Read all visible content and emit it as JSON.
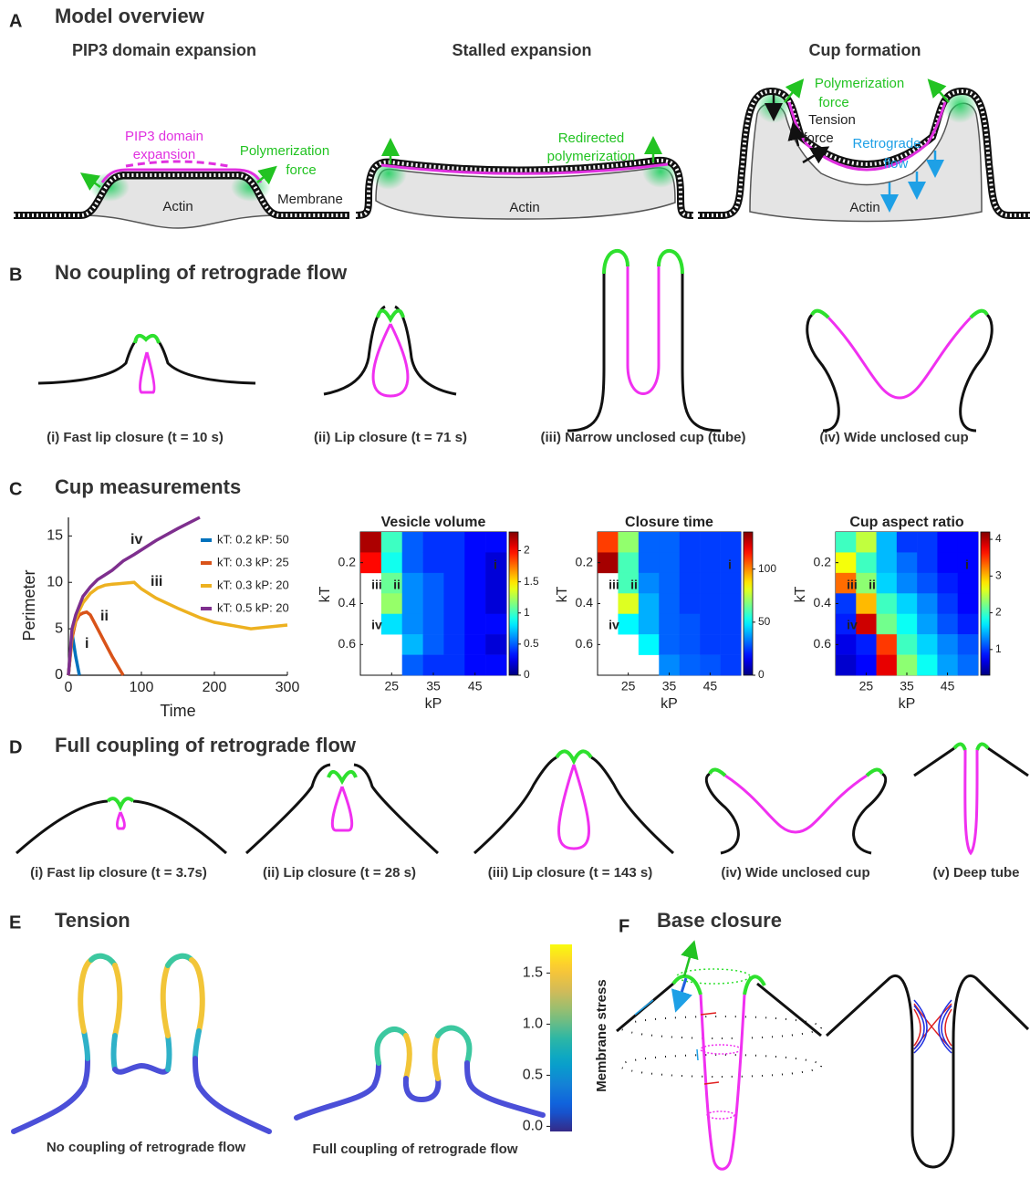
{
  "figure": {
    "A": {
      "letter": "A",
      "title": "Model overview",
      "columns": [
        "PIP3 domain expansion",
        "Stalled expansion",
        "Cup formation"
      ],
      "notes": [
        "PIP3  domain",
        "expansion",
        "Polymerization",
        "force",
        "Actin",
        "Membrane",
        "Redirected",
        "polymerization",
        "Actin",
        "Polymerization",
        "force",
        "Tension",
        "force",
        "Retrograde",
        "flow",
        "Actin"
      ]
    },
    "B": {
      "letter": "B",
      "title": "No coupling of retrograde flow",
      "captions": [
        "(i) Fast lip closure (t = 10 s)",
        "(ii) Lip closure (t = 71 s)",
        "(iii) Narrow unclosed cup (tube)",
        "(iv) Wide unclosed cup"
      ]
    },
    "C": {
      "letter": "C",
      "title": "Cup measurements"
    },
    "D": {
      "letter": "D",
      "title": "Full coupling of retrograde flow",
      "captions": [
        "(i) Fast lip closure (t = 3.7s)",
        "(ii) Lip closure (t =  28 s)",
        "(iii) Lip closure (t = 143 s)",
        "(iv) Wide unclosed cup",
        "(v) Deep tube"
      ]
    },
    "E": {
      "letter": "E",
      "title": "Tension",
      "captions": [
        "No coupling of retrograde flow",
        "Full coupling of retrograde flow"
      ],
      "colorbar": {
        "label": "Membrane stress",
        "colormap": "parula",
        "range": [
          -0.05,
          1.78
        ],
        "ticks": [
          {
            "value": 0,
            "label": "0.0"
          },
          {
            "value": 0.5,
            "label": "0.5"
          },
          {
            "value": 1,
            "label": "1.0"
          },
          {
            "value": 1.5,
            "label": "1.5"
          }
        ]
      }
    },
    "F": {
      "letter": "F",
      "title": "Base closure"
    }
  },
  "chart_data": [
    {
      "type": "line",
      "xlabel": "Time",
      "ylabel": "Perimeter",
      "x": [
        0,
        5,
        10,
        15,
        20,
        25,
        30,
        40,
        50,
        60,
        75,
        90,
        100,
        120,
        150,
        180,
        200,
        250,
        300
      ],
      "series": [
        {
          "name": "kT: 0.2  kP: 50",
          "color": "#0072bd",
          "values": [
            0,
            4.5,
            2,
            0,
            null,
            null,
            null,
            null,
            null,
            null,
            null,
            null,
            null,
            null,
            null,
            null,
            null,
            null,
            null
          ]
        },
        {
          "name": "kT: 0.3  kP: 25",
          "color": "#d95319",
          "values": [
            0,
            4,
            5.8,
            6.5,
            6.7,
            6.8,
            6.5,
            5,
            3.5,
            2,
            0,
            null,
            null,
            null,
            null,
            null,
            null,
            null,
            null
          ]
        },
        {
          "name": "kT: 0.3  kP: 20",
          "color": "#edb120",
          "values": [
            0,
            4.5,
            6,
            7,
            7.8,
            8.3,
            8.8,
            9.4,
            9.7,
            9.8,
            9.9,
            10,
            9.3,
            8.3,
            7.2,
            6.2,
            5.7,
            5,
            5.4
          ]
        },
        {
          "name": "kT: 0.5  kP: 20",
          "color": "#7e2f8e",
          "values": [
            0,
            5,
            6.5,
            7.5,
            8.5,
            9,
            9.5,
            10.3,
            10.8,
            11.3,
            12.3,
            13,
            13.5,
            14.5,
            15.8,
            17,
            null,
            null,
            null
          ]
        }
      ],
      "annotations": [
        "i",
        "ii",
        "iii",
        "iv"
      ],
      "xlim": [
        0,
        300
      ],
      "xticks": [
        0,
        100,
        200,
        300
      ],
      "ylim": [
        0,
        17
      ],
      "yticks": [
        0,
        5,
        10,
        15
      ]
    },
    {
      "type": "heatmap",
      "title": "Vesicle volume",
      "xlabel": "kP",
      "ylabel": "kT",
      "colormap": "jet",
      "x": [
        20,
        25,
        30,
        35,
        40,
        45,
        50
      ],
      "y": [
        0.1,
        0.2,
        0.3,
        0.4,
        0.5,
        0.6,
        0.7
      ],
      "values": [
        [
          2.2,
          1.0,
          0.5,
          0.4,
          0.4,
          0.3,
          0.3
        ],
        [
          2.0,
          0.9,
          0.5,
          0.4,
          0.4,
          0.3,
          0.2
        ],
        [
          null,
          1.1,
          0.6,
          0.5,
          0.4,
          0.3,
          0.2
        ],
        [
          null,
          1.2,
          0.6,
          0.5,
          0.4,
          0.3,
          0.2
        ],
        [
          null,
          0.8,
          0.6,
          0.5,
          0.4,
          0.3,
          0.3
        ],
        [
          null,
          null,
          0.7,
          0.5,
          0.4,
          0.3,
          0.2
        ],
        [
          null,
          null,
          0.5,
          0.4,
          0.4,
          0.3,
          0.3
        ]
      ],
      "xlim": [
        17.5,
        52.5
      ],
      "xticks": [
        25,
        35,
        45
      ],
      "ylim": [
        0.05,
        0.75
      ],
      "yticks": [
        0.2,
        0.4,
        0.6
      ],
      "y_reversed": true,
      "clim": [
        0,
        2.3
      ],
      "cticks": [
        0,
        0.5,
        1,
        1.5,
        2
      ],
      "annotations": [
        "i",
        "ii",
        "iii",
        "iv"
      ]
    },
    {
      "type": "heatmap",
      "title": "Closure time",
      "xlabel": "kP",
      "ylabel": "kT",
      "colormap": "jet",
      "x": [
        20,
        25,
        30,
        35,
        40,
        45,
        50
      ],
      "y": [
        0.1,
        0.2,
        0.3,
        0.4,
        0.5,
        0.6,
        0.7
      ],
      "values": [
        [
          110,
          70,
          30,
          30,
          25,
          25,
          25
        ],
        [
          130,
          60,
          30,
          30,
          25,
          25,
          25
        ],
        [
          null,
          60,
          35,
          30,
          25,
          25,
          25
        ],
        [
          null,
          80,
          40,
          30,
          25,
          25,
          25
        ],
        [
          null,
          50,
          40,
          30,
          28,
          25,
          25
        ],
        [
          null,
          null,
          50,
          30,
          28,
          25,
          25
        ],
        [
          null,
          null,
          null,
          35,
          30,
          28,
          25
        ]
      ],
      "xlim": [
        17.5,
        52.5
      ],
      "xticks": [
        25,
        35,
        45
      ],
      "ylim": [
        0.05,
        0.75
      ],
      "yticks": [
        0.2,
        0.4,
        0.6
      ],
      "y_reversed": true,
      "clim": [
        0,
        135
      ],
      "cticks": [
        0,
        50,
        100
      ],
      "annotations": [
        "i",
        "ii",
        "iii",
        "iv"
      ]
    },
    {
      "type": "heatmap",
      "title": "Cup aspect ratio",
      "xlabel": "kP",
      "ylabel": "kT",
      "colormap": "jet",
      "x": [
        20,
        25,
        30,
        35,
        40,
        45,
        50
      ],
      "y": [
        0.1,
        0.2,
        0.3,
        0.4,
        0.5,
        0.6,
        0.7
      ],
      "values": [
        [
          2.0,
          2.5,
          1.5,
          1.0,
          1.0,
          0.8,
          0.8
        ],
        [
          2.7,
          2.0,
          1.5,
          1.2,
          1.0,
          0.8,
          0.8
        ],
        [
          3.3,
          2.3,
          1.6,
          1.3,
          1.1,
          0.9,
          0.8
        ],
        [
          1.0,
          3.0,
          2.0,
          1.6,
          1.3,
          1.0,
          0.8
        ],
        [
          0.9,
          3.9,
          2.2,
          1.8,
          1.4,
          1.1,
          0.9
        ],
        [
          0.7,
          0.9,
          3.5,
          2.0,
          1.6,
          1.3,
          1.1
        ],
        [
          0.6,
          0.8,
          3.8,
          2.3,
          1.8,
          1.4,
          1.2
        ]
      ],
      "xlim": [
        17.5,
        52.5
      ],
      "xticks": [
        25,
        35,
        45
      ],
      "ylim": [
        0.05,
        0.75
      ],
      "yticks": [
        0.2,
        0.4,
        0.6
      ],
      "y_reversed": true,
      "clim": [
        0.3,
        4.2
      ],
      "cticks": [
        1,
        2,
        3,
        4
      ],
      "annotations": [
        "i",
        "ii",
        "iii",
        "iv"
      ]
    }
  ]
}
